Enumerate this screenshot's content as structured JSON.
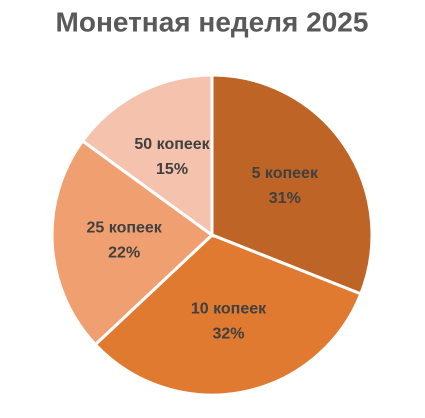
{
  "chart_data": {
    "type": "pie",
    "title": "Монетная неделя 2025",
    "categories": [
      "5 копеек",
      "10 копеек",
      "25 копеек",
      "50 копеек"
    ],
    "values": [
      31,
      32,
      22,
      15
    ],
    "value_labels": [
      "31%",
      "32%",
      "22%",
      "15%"
    ],
    "colors": [
      "#bd6426",
      "#e07a30",
      "#f0a070",
      "#f5c2ad"
    ]
  }
}
